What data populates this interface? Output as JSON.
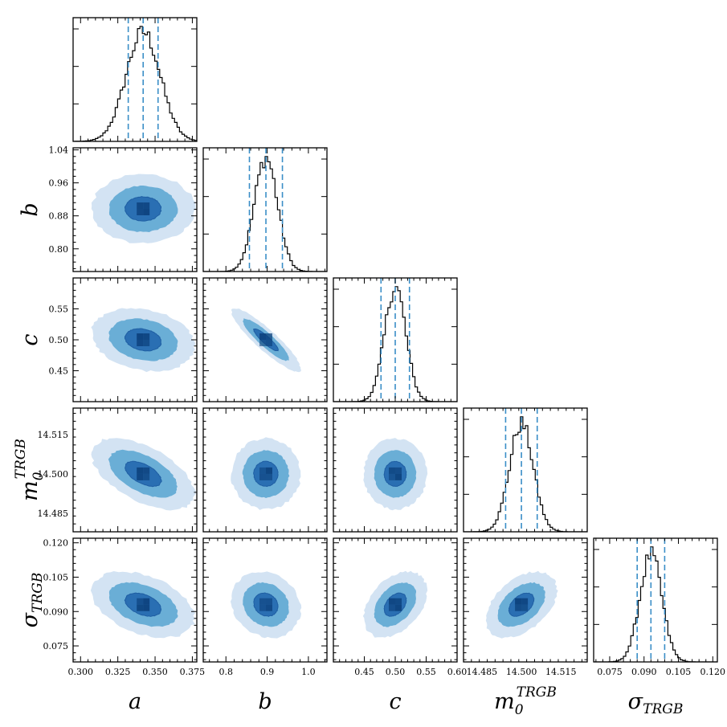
{
  "chart_data": {
    "type": "corner",
    "title": "",
    "parameters": [
      {
        "key": "a",
        "name": "a",
        "sup": "",
        "sub": "",
        "range": [
          0.295,
          0.378
        ],
        "ticks": [
          0.3,
          0.325,
          0.35,
          0.375
        ],
        "tick_labels": [
          "0.300",
          "0.325",
          "0.350",
          "0.375"
        ],
        "mean": 0.342,
        "sigma": 0.0115,
        "quantiles": [
          0.332,
          0.342,
          0.352
        ]
      },
      {
        "key": "b",
        "name": "b",
        "sup": "",
        "sub": "",
        "range": [
          0.745,
          1.045
        ],
        "ticks": [
          0.8,
          0.88,
          0.96,
          1.04
        ],
        "tick_labels": [
          "0.80",
          "0.88",
          "0.96",
          "1.04"
        ],
        "x_ticks": [
          0.8,
          0.9,
          1.0
        ],
        "x_tick_labels": [
          "0.8",
          "0.9",
          "1.0"
        ],
        "mean": 0.897,
        "sigma": 0.028,
        "quantiles": [
          0.857,
          0.897,
          0.937
        ]
      },
      {
        "key": "c",
        "name": "c",
        "sup": "",
        "sub": "",
        "range": [
          0.4,
          0.6
        ],
        "ticks": [
          0.45,
          0.5,
          0.55
        ],
        "tick_labels": [
          "0.45",
          "0.50",
          "0.55"
        ],
        "x_ticks": [
          0.45,
          0.5,
          0.55,
          0.6
        ],
        "x_tick_labels": [
          "0.45",
          "0.50",
          "0.55",
          "0.60"
        ],
        "mean": 0.5,
        "sigma": 0.017,
        "quantiles": [
          0.477,
          0.5,
          0.523
        ]
      },
      {
        "key": "m0",
        "name": "m",
        "sup": "TRGB",
        "sub": "0",
        "range": [
          14.478,
          14.525
        ],
        "ticks": [
          14.485,
          14.5,
          14.515
        ],
        "tick_labels": [
          "14.485",
          "14.500",
          "14.515"
        ],
        "mean": 14.5,
        "sigma": 0.0045,
        "quantiles": [
          14.494,
          14.5,
          14.506
        ]
      },
      {
        "key": "sigma",
        "name": "σ",
        "sup": "",
        "sub": "TRGB",
        "range": [
          0.068,
          0.122
        ],
        "ticks": [
          0.075,
          0.09,
          0.105,
          0.12
        ],
        "tick_labels": [
          "0.075",
          "0.090",
          "0.105",
          "0.120"
        ],
        "mean": 0.093,
        "sigma": 0.0048,
        "quantiles": [
          0.087,
          0.093,
          0.099
        ]
      }
    ],
    "correlations": [
      {
        "pair": [
          "a",
          "b"
        ],
        "rho": 0.0
      },
      {
        "pair": [
          "a",
          "c"
        ],
        "rho": -0.2
      },
      {
        "pair": [
          "b",
          "c"
        ],
        "rho": -0.9
      },
      {
        "pair": [
          "a",
          "m0"
        ],
        "rho": -0.55
      },
      {
        "pair": [
          "b",
          "m0"
        ],
        "rho": 0.0
      },
      {
        "pair": [
          "c",
          "m0"
        ],
        "rho": 0.0
      },
      {
        "pair": [
          "a",
          "sigma"
        ],
        "rho": -0.4
      },
      {
        "pair": [
          "b",
          "sigma"
        ],
        "rho": -0.15
      },
      {
        "pair": [
          "c",
          "sigma"
        ],
        "rho": 0.4
      },
      {
        "pair": [
          "m0",
          "sigma"
        ],
        "rho": 0.45
      }
    ],
    "contour_levels_sigma": [
      1,
      2,
      3
    ],
    "histogram_bins": 50,
    "quantile_lines": [
      0.16,
      0.5,
      0.84
    ],
    "colors": {
      "contour_outer": "#d3e3f3",
      "contour_middle": "#6aaed6",
      "contour_inner": "#2a6fb3",
      "contour_core": "#0b3f7a",
      "histogram": "#000000",
      "quantile_line": "#3a8ec7"
    }
  }
}
